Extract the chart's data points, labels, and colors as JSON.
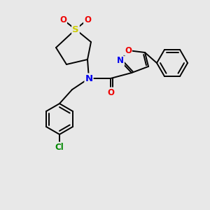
{
  "background_color": "#e8e8e8",
  "bond_color": "#000000",
  "atom_colors": {
    "N": "#0000ee",
    "O": "#ee0000",
    "S": "#cccc00",
    "Cl": "#008800",
    "C": "#000000"
  },
  "font_size": 8.5,
  "line_width": 1.4
}
